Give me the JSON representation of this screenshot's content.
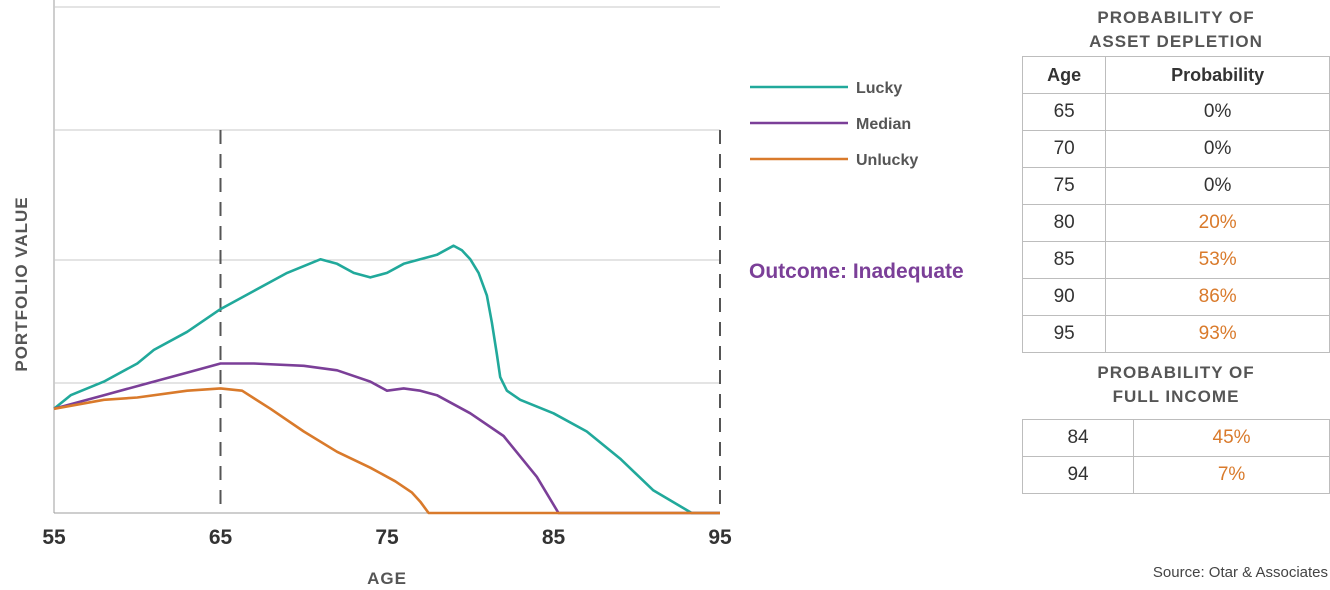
{
  "chart_data": {
    "type": "line",
    "xlabel": "AGE",
    "ylabel": "PORTFOLIO VALUE",
    "xlim": [
      55,
      95
    ],
    "ylim": [
      0,
      100
    ],
    "x_ticks": [
      "55",
      "65",
      "75",
      "85",
      "95"
    ],
    "series": [
      {
        "name": "Lucky",
        "color": "#21a99b",
        "points": [
          [
            55,
            23
          ],
          [
            56,
            26
          ],
          [
            58,
            29
          ],
          [
            60,
            33
          ],
          [
            61,
            36
          ],
          [
            63,
            40
          ],
          [
            65,
            45
          ],
          [
            67,
            49
          ],
          [
            69,
            53
          ],
          [
            71,
            56
          ],
          [
            72,
            55
          ],
          [
            73,
            53
          ],
          [
            74,
            52
          ],
          [
            75,
            53
          ],
          [
            76,
            55
          ],
          [
            77,
            56
          ],
          [
            78,
            57
          ],
          [
            79,
            59
          ],
          [
            79.5,
            58
          ],
          [
            80,
            56
          ],
          [
            80.5,
            53
          ],
          [
            81,
            48
          ],
          [
            81.3,
            42
          ],
          [
            81.6,
            35
          ],
          [
            81.8,
            30
          ],
          [
            82.2,
            27
          ],
          [
            83,
            25
          ],
          [
            85,
            22
          ],
          [
            87,
            18
          ],
          [
            89,
            12
          ],
          [
            91,
            5
          ],
          [
            93.3,
            0
          ],
          [
            95,
            0
          ]
        ]
      },
      {
        "name": "Median",
        "color": "#7b3f98",
        "points": [
          [
            55,
            23
          ],
          [
            58,
            26
          ],
          [
            61,
            29
          ],
          [
            63,
            31
          ],
          [
            65,
            33
          ],
          [
            67,
            33
          ],
          [
            70,
            32.5
          ],
          [
            72,
            31.5
          ],
          [
            74,
            29
          ],
          [
            75,
            27
          ],
          [
            76,
            27.5
          ],
          [
            77,
            27
          ],
          [
            78,
            26
          ],
          [
            80,
            22
          ],
          [
            82,
            17
          ],
          [
            84,
            8
          ],
          [
            85.3,
            0
          ],
          [
            95,
            0
          ]
        ]
      },
      {
        "name": "Unlucky",
        "color": "#d97a2b",
        "points": [
          [
            55,
            23
          ],
          [
            58,
            25
          ],
          [
            60,
            25.5
          ],
          [
            63,
            27
          ],
          [
            65,
            27.5
          ],
          [
            66.3,
            27
          ],
          [
            68,
            23
          ],
          [
            70,
            18
          ],
          [
            72,
            13.5
          ],
          [
            74,
            10
          ],
          [
            75.5,
            7
          ],
          [
            76.5,
            4.5
          ],
          [
            77,
            2.5
          ],
          [
            77.5,
            0
          ],
          [
            95,
            0
          ]
        ]
      }
    ],
    "annotation": "Outcome: Inadequate"
  },
  "tables": {
    "depletion": {
      "title_line1": "PROBABILITY OF",
      "title_line2": "ASSET DEPLETION",
      "col_age": "Age",
      "col_prob": "Probability",
      "rows": [
        {
          "age": "65",
          "prob": "0%",
          "highlight": false
        },
        {
          "age": "70",
          "prob": "0%",
          "highlight": false
        },
        {
          "age": "75",
          "prob": "0%",
          "highlight": false
        },
        {
          "age": "80",
          "prob": "20%",
          "highlight": true
        },
        {
          "age": "85",
          "prob": "53%",
          "highlight": true
        },
        {
          "age": "90",
          "prob": "86%",
          "highlight": true
        },
        {
          "age": "95",
          "prob": "93%",
          "highlight": true
        }
      ]
    },
    "income": {
      "title_line1": "PROBABILITY OF",
      "title_line2": "FULL INCOME",
      "rows": [
        {
          "age": "84",
          "prob": "45%",
          "highlight": true
        },
        {
          "age": "94",
          "prob": "7%",
          "highlight": true
        }
      ]
    }
  },
  "source": "Source: Otar & Associates"
}
